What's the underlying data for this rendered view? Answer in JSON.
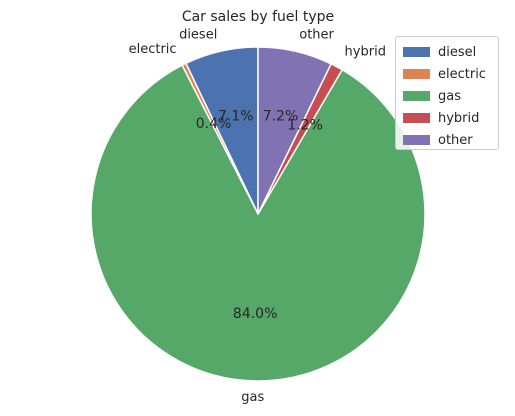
{
  "chart_data": {
    "type": "pie",
    "title": "Car sales by fuel type",
    "categories": [
      "diesel",
      "electric",
      "gas",
      "hybrid",
      "other"
    ],
    "values": [
      7.1,
      0.4,
      84.0,
      1.2,
      7.2
    ],
    "pct_labels": [
      "7.1%",
      "0.4%",
      "84.0%",
      "1.2%",
      "7.2%"
    ],
    "colors": [
      "#4c72b0",
      "#dd8452",
      "#55a868",
      "#c44e52",
      "#8172b3"
    ],
    "start_angle_deg": 90,
    "direction": "counterclockwise",
    "legend_position": "top-right"
  }
}
